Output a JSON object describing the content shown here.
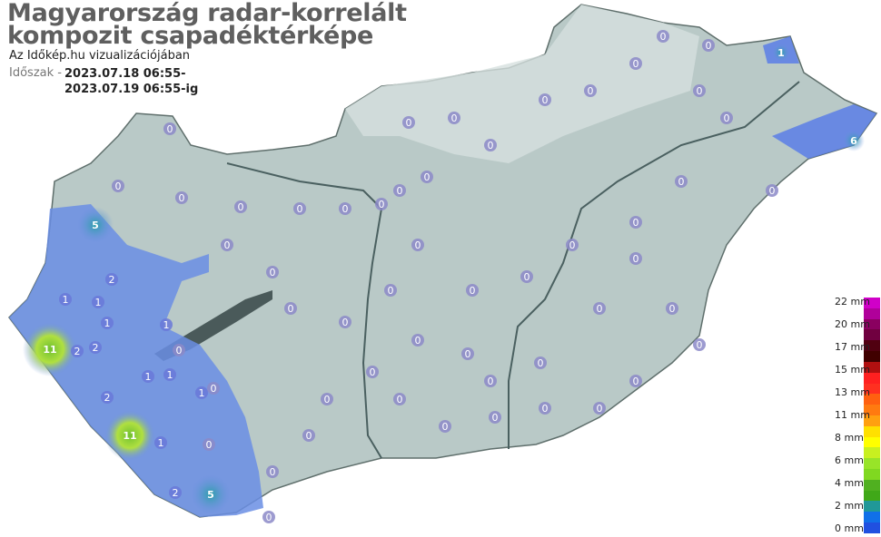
{
  "header": {
    "title_line1": "Magyarország radar-korrelált",
    "title_line2": "kompozit csapadéktérképe",
    "subtitle": "Az Időkép.hu vizualizációjában",
    "period_label": "Időszak -",
    "period_from": "2023.07.18 06:55-",
    "period_to": "2023.07.19 06:55-ig"
  },
  "legend": {
    "unit": "mm",
    "labels": [
      "22 mm",
      "20 mm",
      "17 mm",
      "15 mm",
      "13 mm",
      "11 mm",
      "8 mm",
      "6 mm",
      "4 mm",
      "2 mm",
      "0 mm"
    ],
    "colors": [
      "#d000c8",
      "#b0009a",
      "#8a0060",
      "#700040",
      "#500010",
      "#400000",
      "#b01010",
      "#ff2020",
      "#ff3020",
      "#ff6010",
      "#ff7a10",
      "#ffa010",
      "#ffe000",
      "#ffff00",
      "#c8f020",
      "#98e428",
      "#80d820",
      "#50b020",
      "#40a818",
      "#209898",
      "#1070e8",
      "#2050e0"
    ]
  },
  "map": {
    "country": "Magyarország",
    "colors": {
      "land": "#b8c8c6",
      "rain_light": "#7090e0",
      "rain_mid": "#5a80e8",
      "rain_peak": "#80d040",
      "station": "#8a88c8"
    },
    "rain_peaks": [
      "11",
      "11",
      "5",
      "5",
      "6",
      "1"
    ],
    "stations": [
      "0",
      "0",
      "0",
      "0",
      "0",
      "0",
      "0",
      "0",
      "0",
      "0",
      "0",
      "0",
      "0",
      "0",
      "0",
      "0",
      "0",
      "0",
      "0",
      "0",
      "0",
      "0",
      "0",
      "0",
      "0",
      "0",
      "0",
      "0",
      "0",
      "0",
      "0",
      "0",
      "0",
      "0",
      "0",
      "0",
      "0",
      "0",
      "0",
      "0",
      "0",
      "0",
      "0",
      "0",
      "0",
      "0",
      "0",
      "0",
      "0",
      "0",
      "1",
      "1",
      "1",
      "1",
      "2",
      "2",
      "2",
      "1",
      "1",
      "2",
      "1",
      "0",
      "0",
      "0",
      "1",
      "2"
    ]
  }
}
